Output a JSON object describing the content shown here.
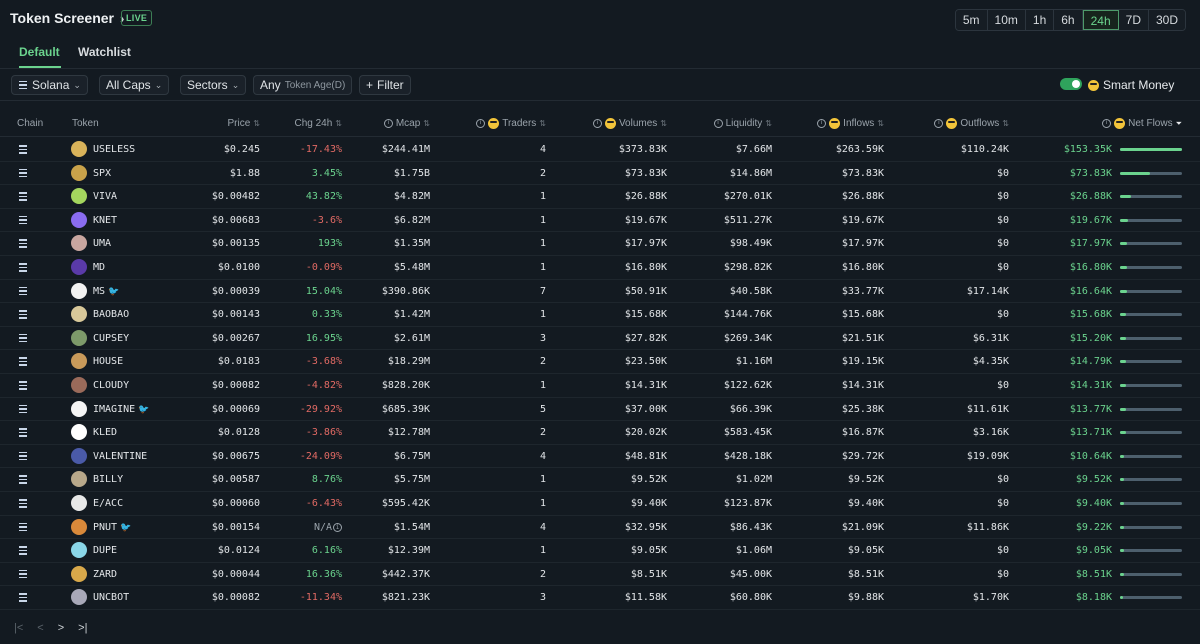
{
  "header": {
    "title": "Token Screener",
    "live_badge": "LIVE",
    "timeframes": [
      "5m",
      "10m",
      "1h",
      "6h",
      "24h",
      "7D",
      "30D"
    ],
    "active_timeframe": "24h"
  },
  "tabs": [
    "Default",
    "Watchlist"
  ],
  "filters": {
    "chain": "Solana",
    "caps": "All Caps",
    "sectors": "Sectors",
    "age_value": "Any",
    "age_label": "Token Age(D)",
    "filter_button": "Filter",
    "smart_money_label": "Smart Money",
    "smart_money_on": true
  },
  "columns": {
    "chain": "Chain",
    "token": "Token",
    "price": "Price",
    "chg": "Chg 24h",
    "mcap": "Mcap",
    "traders": "Traders",
    "volumes": "Volumes",
    "liquidity": "Liquidity",
    "inflows": "Inflows",
    "outflows": "Outflows",
    "netflows": "Net Flows"
  },
  "colors": {
    "positive": "#6bd38e",
    "negative": "#e16a64",
    "accent": "#6bd38e",
    "background": "#131a21"
  },
  "rows": [
    {
      "token": "USELESS",
      "bird": false,
      "price": "$0.245",
      "chg": "-17.43%",
      "dir": "neg",
      "mcap": "$244.41M",
      "traders": "4",
      "volumes": "$373.83K",
      "liquidity": "$7.66M",
      "inflows": "$263.59K",
      "outflows": "$110.24K",
      "netflows": "$153.35K",
      "share": 1.0,
      "avatar": "#d9b35a"
    },
    {
      "token": "SPX",
      "bird": false,
      "price": "$1.88",
      "chg": "3.45%",
      "dir": "pos",
      "mcap": "$1.75B",
      "traders": "2",
      "volumes": "$73.83K",
      "liquidity": "$14.86M",
      "inflows": "$73.83K",
      "outflows": "$0",
      "netflows": "$73.83K",
      "share": 0.48,
      "avatar": "#c9a24a"
    },
    {
      "token": "VIVA",
      "bird": false,
      "price": "$0.00482",
      "chg": "43.82%",
      "dir": "pos",
      "mcap": "$4.82M",
      "traders": "1",
      "volumes": "$26.88K",
      "liquidity": "$270.01K",
      "inflows": "$26.88K",
      "outflows": "$0",
      "netflows": "$26.88K",
      "share": 0.18,
      "avatar": "#a4d65e"
    },
    {
      "token": "KNET",
      "bird": false,
      "price": "$0.00683",
      "chg": "-3.6%",
      "dir": "neg",
      "mcap": "$6.82M",
      "traders": "1",
      "volumes": "$19.67K",
      "liquidity": "$511.27K",
      "inflows": "$19.67K",
      "outflows": "$0",
      "netflows": "$19.67K",
      "share": 0.13,
      "avatar": "#8a6cf0"
    },
    {
      "token": "UMA",
      "bird": false,
      "price": "$0.00135",
      "chg": "193%",
      "dir": "pos",
      "mcap": "$1.35M",
      "traders": "1",
      "volumes": "$17.97K",
      "liquidity": "$98.49K",
      "inflows": "$17.97K",
      "outflows": "$0",
      "netflows": "$17.97K",
      "share": 0.12,
      "avatar": "#c8a6a0"
    },
    {
      "token": "MD",
      "bird": false,
      "price": "$0.0100",
      "chg": "-0.09%",
      "dir": "neg",
      "mcap": "$5.48M",
      "traders": "1",
      "volumes": "$16.80K",
      "liquidity": "$298.82K",
      "inflows": "$16.80K",
      "outflows": "$0",
      "netflows": "$16.80K",
      "share": 0.11,
      "avatar": "#5a3aa8"
    },
    {
      "token": "MS",
      "bird": true,
      "price": "$0.00039",
      "chg": "15.04%",
      "dir": "pos",
      "mcap": "$390.86K",
      "traders": "7",
      "volumes": "$50.91K",
      "liquidity": "$40.58K",
      "inflows": "$33.77K",
      "outflows": "$17.14K",
      "netflows": "$16.64K",
      "share": 0.11,
      "avatar": "#f2f2f2"
    },
    {
      "token": "BAOBAO",
      "bird": false,
      "price": "$0.00143",
      "chg": "0.33%",
      "dir": "pos",
      "mcap": "$1.42M",
      "traders": "1",
      "volumes": "$15.68K",
      "liquidity": "$144.76K",
      "inflows": "$15.68K",
      "outflows": "$0",
      "netflows": "$15.68K",
      "share": 0.1,
      "avatar": "#d8c89a"
    },
    {
      "token": "CUPSEY",
      "bird": false,
      "price": "$0.00267",
      "chg": "16.95%",
      "dir": "pos",
      "mcap": "$2.61M",
      "traders": "3",
      "volumes": "$27.82K",
      "liquidity": "$269.34K",
      "inflows": "$21.51K",
      "outflows": "$6.31K",
      "netflows": "$15.20K",
      "share": 0.1,
      "avatar": "#7d9a6a"
    },
    {
      "token": "HOUSE",
      "bird": false,
      "price": "$0.0183",
      "chg": "-3.68%",
      "dir": "neg",
      "mcap": "$18.29M",
      "traders": "2",
      "volumes": "$23.50K",
      "liquidity": "$1.16M",
      "inflows": "$19.15K",
      "outflows": "$4.35K",
      "netflows": "$14.79K",
      "share": 0.1,
      "avatar": "#c89a5a"
    },
    {
      "token": "CLOUDY",
      "bird": false,
      "price": "$0.00082",
      "chg": "-4.82%",
      "dir": "neg",
      "mcap": "$828.20K",
      "traders": "1",
      "volumes": "$14.31K",
      "liquidity": "$122.62K",
      "inflows": "$14.31K",
      "outflows": "$0",
      "netflows": "$14.31K",
      "share": 0.09,
      "avatar": "#9a6a5a"
    },
    {
      "token": "IMAGINE",
      "bird": true,
      "price": "$0.00069",
      "chg": "-29.92%",
      "dir": "neg",
      "mcap": "$685.39K",
      "traders": "5",
      "volumes": "$37.00K",
      "liquidity": "$66.39K",
      "inflows": "$25.38K",
      "outflows": "$11.61K",
      "netflows": "$13.77K",
      "share": 0.09,
      "avatar": "#f5f5f5"
    },
    {
      "token": "KLED",
      "bird": false,
      "price": "$0.0128",
      "chg": "-3.86%",
      "dir": "neg",
      "mcap": "$12.78M",
      "traders": "2",
      "volumes": "$20.02K",
      "liquidity": "$583.45K",
      "inflows": "$16.87K",
      "outflows": "$3.16K",
      "netflows": "$13.71K",
      "share": 0.09,
      "avatar": "#ffffff"
    },
    {
      "token": "VALENTINE",
      "bird": false,
      "price": "$0.00675",
      "chg": "-24.09%",
      "dir": "neg",
      "mcap": "$6.75M",
      "traders": "4",
      "volumes": "$48.81K",
      "liquidity": "$428.18K",
      "inflows": "$29.72K",
      "outflows": "$19.09K",
      "netflows": "$10.64K",
      "share": 0.07,
      "avatar": "#4a5aa8"
    },
    {
      "token": "BILLY",
      "bird": false,
      "price": "$0.00587",
      "chg": "8.76%",
      "dir": "pos",
      "mcap": "$5.75M",
      "traders": "1",
      "volumes": "$9.52K",
      "liquidity": "$1.02M",
      "inflows": "$9.52K",
      "outflows": "$0",
      "netflows": "$9.52K",
      "share": 0.06,
      "avatar": "#b8a88a"
    },
    {
      "token": "E/ACC",
      "bird": false,
      "price": "$0.00060",
      "chg": "-6.43%",
      "dir": "neg",
      "mcap": "$595.42K",
      "traders": "1",
      "volumes": "$9.40K",
      "liquidity": "$123.87K",
      "inflows": "$9.40K",
      "outflows": "$0",
      "netflows": "$9.40K",
      "share": 0.06,
      "avatar": "#e8e8e8"
    },
    {
      "token": "PNUT",
      "bird": true,
      "price": "$0.00154",
      "chg": "N/A",
      "dir": "na",
      "mcap": "$1.54M",
      "traders": "4",
      "volumes": "$32.95K",
      "liquidity": "$86.43K",
      "inflows": "$21.09K",
      "outflows": "$11.86K",
      "netflows": "$9.22K",
      "share": 0.06,
      "avatar": "#d9893a"
    },
    {
      "token": "DUPE",
      "bird": false,
      "price": "$0.0124",
      "chg": "6.16%",
      "dir": "pos",
      "mcap": "$12.39M",
      "traders": "1",
      "volumes": "$9.05K",
      "liquidity": "$1.06M",
      "inflows": "$9.05K",
      "outflows": "$0",
      "netflows": "$9.05K",
      "share": 0.06,
      "avatar": "#8ad6e8"
    },
    {
      "token": "ZARD",
      "bird": false,
      "price": "$0.00044",
      "chg": "16.36%",
      "dir": "pos",
      "mcap": "$442.37K",
      "traders": "2",
      "volumes": "$8.51K",
      "liquidity": "$45.00K",
      "inflows": "$8.51K",
      "outflows": "$0",
      "netflows": "$8.51K",
      "share": 0.06,
      "avatar": "#d8a84a"
    },
    {
      "token": "UNCBOT",
      "bird": false,
      "price": "$0.00082",
      "chg": "-11.34%",
      "dir": "neg",
      "mcap": "$821.23K",
      "traders": "3",
      "volumes": "$11.58K",
      "liquidity": "$60.80K",
      "inflows": "$9.88K",
      "outflows": "$1.70K",
      "netflows": "$8.18K",
      "share": 0.05,
      "avatar": "#a8a8b8"
    }
  ],
  "pager": {
    "first": "|<",
    "prev": "<",
    "next": ">",
    "last": ">|"
  }
}
